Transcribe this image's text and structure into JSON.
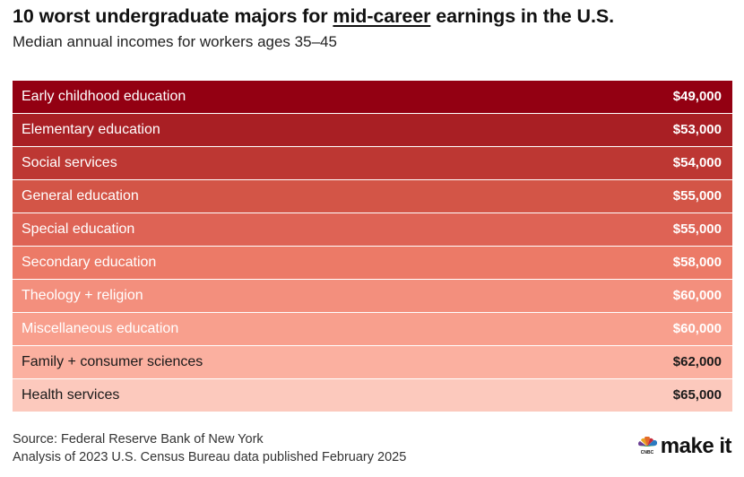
{
  "header": {
    "title_pre": "10 worst undergraduate majors for ",
    "title_highlight": "mid-career",
    "title_post": " earnings in the U.S.",
    "subtitle": "Median annual incomes for workers ages 35–45"
  },
  "chart_data": {
    "type": "table",
    "title": "10 worst undergraduate majors for mid-career earnings in the U.S.",
    "subtitle": "Median annual incomes for workers ages 35–45",
    "categories": [
      "Early childhood education",
      "Elementary education",
      "Social services",
      "General education",
      "Special education",
      "Secondary education",
      "Theology + religion",
      "Miscellaneous education",
      "Family + consumer sciences",
      "Health services"
    ],
    "values": [
      49000,
      53000,
      54000,
      55000,
      55000,
      58000,
      60000,
      60000,
      62000,
      65000
    ],
    "value_labels": [
      "$49,000",
      "$53,000",
      "$54,000",
      "$55,000",
      "$55,000",
      "$58,000",
      "$60,000",
      "$60,000",
      "$62,000",
      "$65,000"
    ],
    "row_colors": [
      "#930012",
      "#a91f24",
      "#bd3733",
      "#d35547",
      "#de6355",
      "#ec7a67",
      "#f38f7d",
      "#f89f8d",
      "#fbb0a0",
      "#fcc9bd"
    ],
    "text_colors": [
      "#ffffff",
      "#ffffff",
      "#ffffff",
      "#ffffff",
      "#ffffff",
      "#ffffff",
      "#ffffff",
      "#ffffff",
      "#1a1a1a",
      "#1a1a1a"
    ]
  },
  "footer": {
    "source_line1": "Source: Federal Reserve Bank of New York",
    "source_line2": "Analysis of 2023 U.S. Census Bureau data published February 2025",
    "logo_text": "make it",
    "logo_icon": "cnbc-peacock-icon",
    "logo_small_text": "CNBC"
  }
}
